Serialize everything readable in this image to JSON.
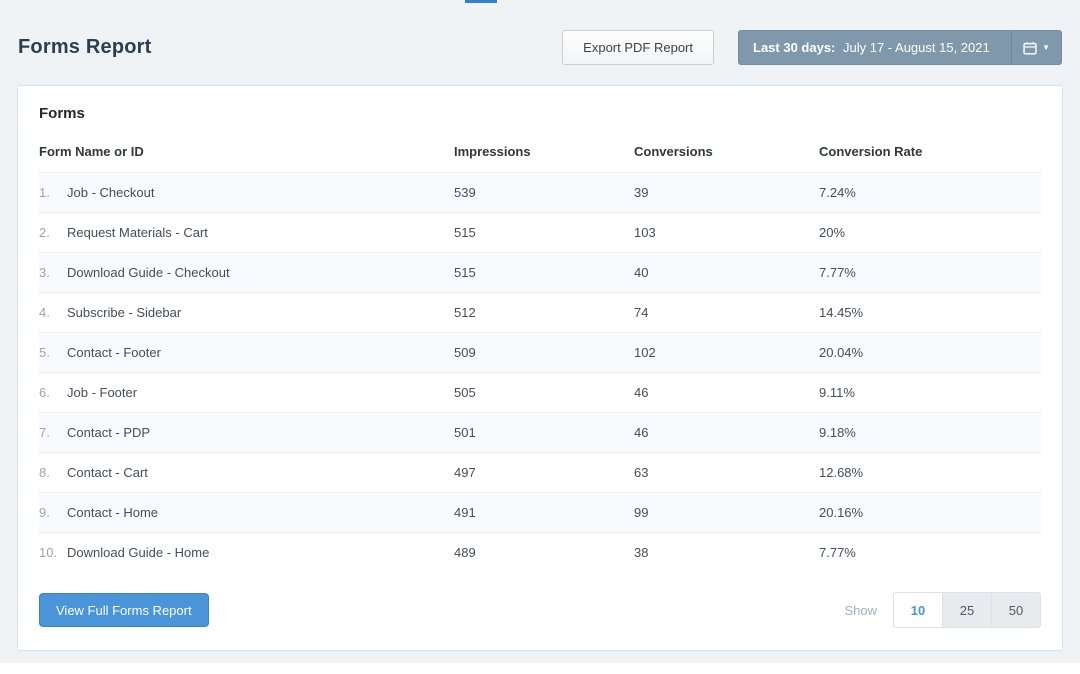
{
  "page": {
    "title": "Forms Report"
  },
  "toolbar": {
    "export_label": "Export PDF Report",
    "date_range": {
      "bold": "Last 30 days:",
      "text": "July 17 - August 15, 2021"
    }
  },
  "card": {
    "title": "Forms",
    "table": {
      "columns": [
        "Form Name or ID",
        "Impressions",
        "Conversions",
        "Conversion Rate"
      ],
      "rows": [
        {
          "index": "1.",
          "name": "Job - Checkout",
          "impressions": "539",
          "conversions": "39",
          "rate": "7.24%"
        },
        {
          "index": "2.",
          "name": "Request Materials - Cart",
          "impressions": "515",
          "conversions": "103",
          "rate": "20%"
        },
        {
          "index": "3.",
          "name": "Download Guide - Checkout",
          "impressions": "515",
          "conversions": "40",
          "rate": "7.77%"
        },
        {
          "index": "4.",
          "name": "Subscribe - Sidebar",
          "impressions": "512",
          "conversions": "74",
          "rate": "14.45%"
        },
        {
          "index": "5.",
          "name": "Contact - Footer",
          "impressions": "509",
          "conversions": "102",
          "rate": "20.04%"
        },
        {
          "index": "6.",
          "name": "Job - Footer",
          "impressions": "505",
          "conversions": "46",
          "rate": "9.11%"
        },
        {
          "index": "7.",
          "name": "Contact - PDP",
          "impressions": "501",
          "conversions": "46",
          "rate": "9.18%"
        },
        {
          "index": "8.",
          "name": "Contact - Cart",
          "impressions": "497",
          "conversions": "63",
          "rate": "12.68%"
        },
        {
          "index": "9.",
          "name": "Contact - Home",
          "impressions": "491",
          "conversions": "99",
          "rate": "20.16%"
        },
        {
          "index": "10.",
          "name": "Download Guide - Home",
          "impressions": "489",
          "conversions": "38",
          "rate": "7.77%"
        }
      ]
    },
    "footer": {
      "view_full_label": "View Full Forms Report",
      "show_label": "Show",
      "page_sizes": [
        "10",
        "25",
        "50"
      ],
      "selected_size": "10"
    }
  },
  "colors": {
    "accent_blue": "#4a94d9",
    "date_picker_bg": "#7f98ab",
    "title_color": "#2e3d4f",
    "page_bg": "#f0f3f6"
  }
}
